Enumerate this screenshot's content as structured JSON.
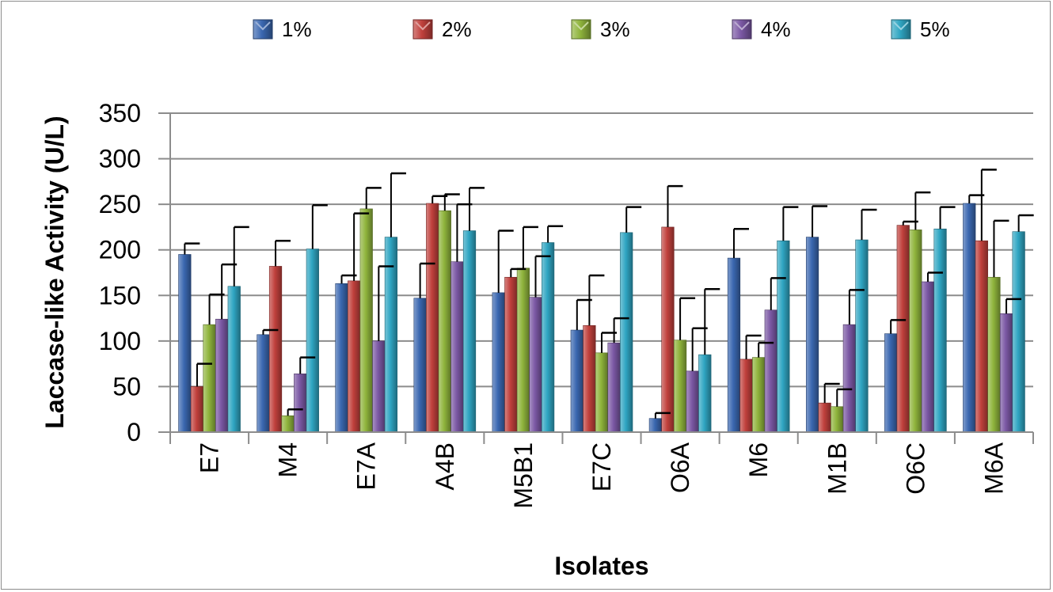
{
  "chart_data": {
    "type": "bar",
    "xlabel": "Isolates",
    "ylabel": "Laccase-like Activity (U/L)",
    "ylim": [
      0,
      350
    ],
    "yticks": [
      0,
      50,
      100,
      150,
      200,
      250,
      300,
      350
    ],
    "grid": true,
    "legend_position": "top",
    "categories": [
      "E7",
      "M4",
      "E7A",
      "A4B",
      "M5B1",
      "E7C",
      "O6A",
      "M6",
      "M1B",
      "O6C",
      "M6A"
    ],
    "series": [
      {
        "name": "1%",
        "color": "#3a67b0",
        "values": [
          195,
          107,
          163,
          147,
          153,
          112,
          15,
          191,
          214,
          108,
          251
        ],
        "errors": [
          12,
          5,
          9,
          38,
          68,
          33,
          6,
          32,
          34,
          15,
          9
        ]
      },
      {
        "name": "2%",
        "color": "#c0403c",
        "values": [
          50,
          182,
          166,
          251,
          170,
          117,
          225,
          80,
          32,
          227,
          210
        ],
        "errors": [
          25,
          28,
          74,
          8,
          9,
          55,
          45,
          26,
          21,
          4,
          78
        ]
      },
      {
        "name": "3%",
        "color": "#8fb43c",
        "values": [
          118,
          18,
          245,
          243,
          180,
          87,
          101,
          82,
          28,
          222,
          170
        ],
        "errors": [
          33,
          7,
          23,
          18,
          45,
          22,
          46,
          16,
          19,
          41,
          62
        ]
      },
      {
        "name": "4%",
        "color": "#7b58a4",
        "values": [
          124,
          64,
          100,
          187,
          148,
          98,
          67,
          134,
          118,
          165,
          130
        ],
        "errors": [
          60,
          18,
          82,
          63,
          45,
          27,
          47,
          35,
          38,
          10,
          16
        ]
      },
      {
        "name": "5%",
        "color": "#2fa5c2",
        "values": [
          160,
          201,
          214,
          221,
          208,
          219,
          85,
          210,
          211,
          223,
          220
        ],
        "errors": [
          65,
          48,
          70,
          47,
          18,
          28,
          72,
          37,
          33,
          24,
          18
        ]
      }
    ]
  }
}
